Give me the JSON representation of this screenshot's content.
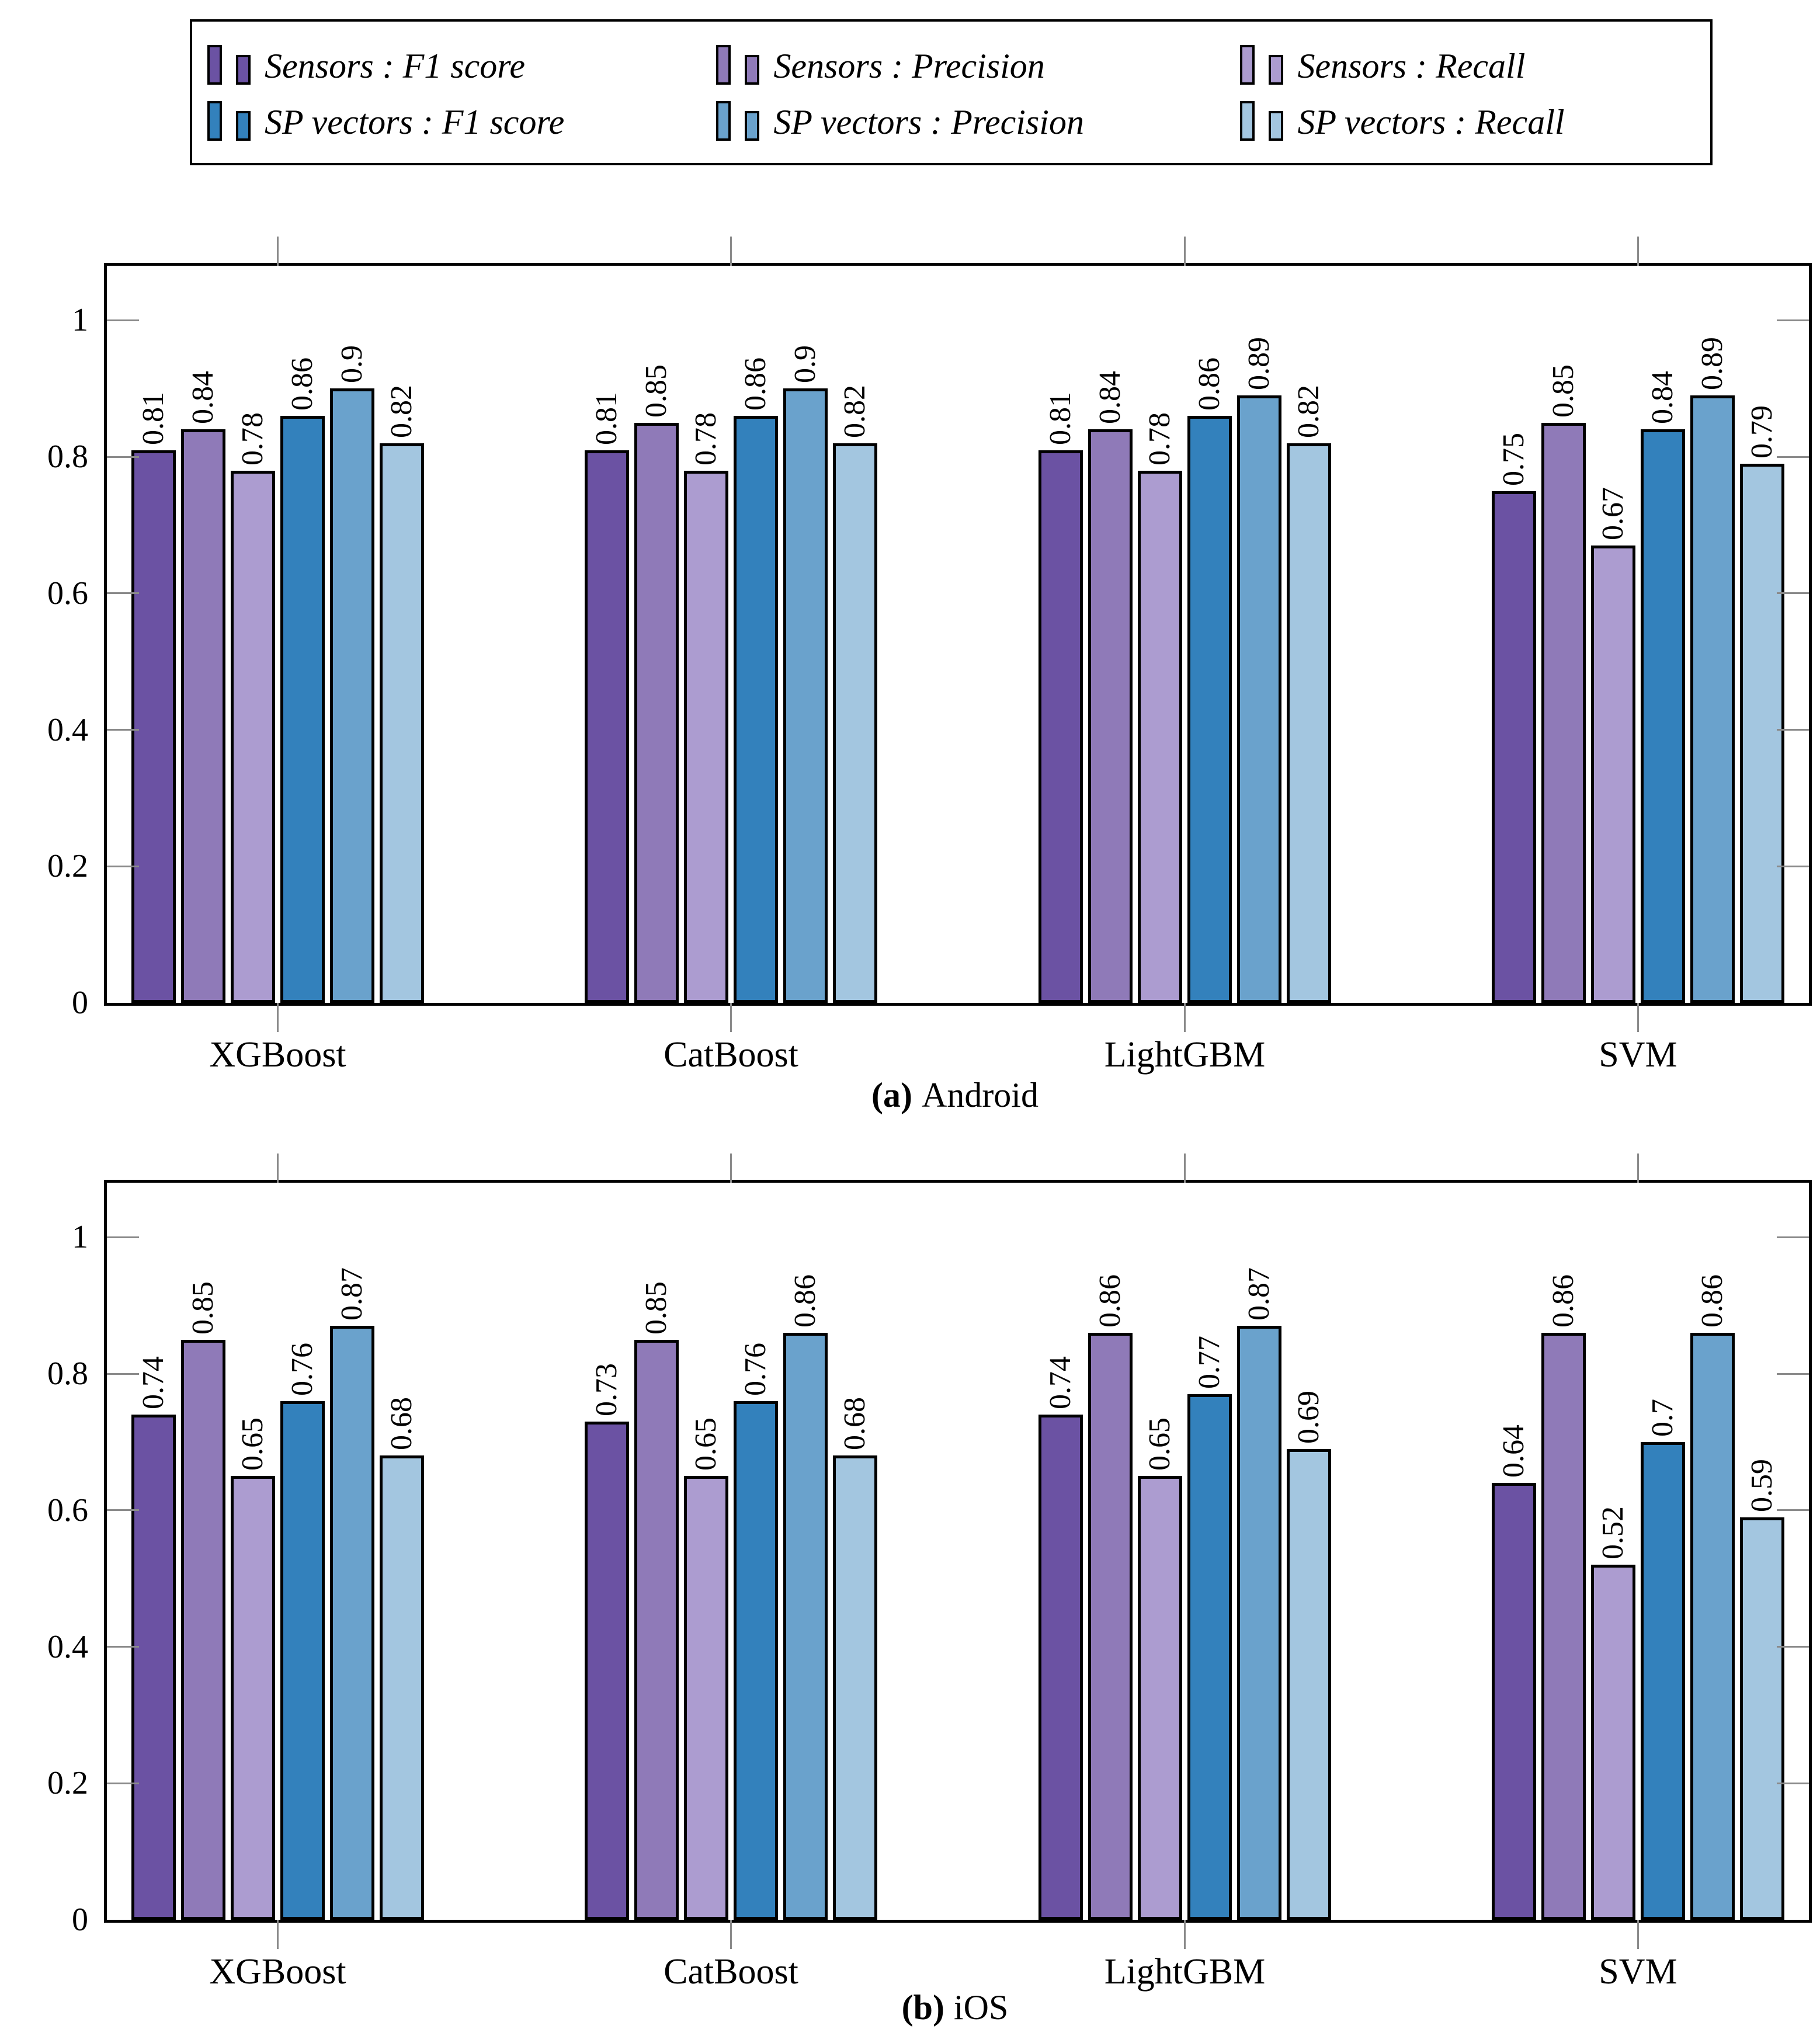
{
  "legend": {
    "entries": [
      {
        "label": "Sensors : F1 score",
        "color": "#6b52a3"
      },
      {
        "label": "Sensors : Precision",
        "color": "#8f7ab8"
      },
      {
        "label": "Sensors : Recall",
        "color": "#ac9cd0"
      },
      {
        "label": "SP vectors : F1 score",
        "color": "#3381bc"
      },
      {
        "label": "SP vectors : Precision",
        "color": "#6aa2cc"
      },
      {
        "label": "SP vectors : Recall",
        "color": "#a3c6e0"
      }
    ]
  },
  "chart_data": [
    {
      "type": "bar",
      "caption_tag": "(a)",
      "caption_label": "Android",
      "categories": [
        "XGBoost",
        "CatBoost",
        "LightGBM",
        "SVM"
      ],
      "series": [
        {
          "name": "Sensors : F1 score",
          "color": "#6b52a3",
          "values": [
            0.81,
            0.81,
            0.81,
            0.75
          ]
        },
        {
          "name": "Sensors : Precision",
          "color": "#8f7ab8",
          "values": [
            0.84,
            0.85,
            0.84,
            0.85
          ]
        },
        {
          "name": "Sensors : Recall",
          "color": "#ac9cd0",
          "values": [
            0.78,
            0.78,
            0.78,
            0.67
          ]
        },
        {
          "name": "SP vectors : F1 score",
          "color": "#3381bc",
          "values": [
            0.86,
            0.86,
            0.86,
            0.84
          ]
        },
        {
          "name": "SP vectors : Precision",
          "color": "#6aa2cc",
          "values": [
            0.9,
            0.9,
            0.89,
            0.89
          ]
        },
        {
          "name": "SP vectors : Recall",
          "color": "#a3c6e0",
          "values": [
            0.82,
            0.82,
            0.82,
            0.79
          ]
        }
      ],
      "ylabel": "",
      "xlabel": "",
      "yticks": [
        0,
        0.2,
        0.4,
        0.6,
        0.8,
        1
      ],
      "ylim": [
        0,
        1.08
      ],
      "grid": false,
      "legend_position": "top"
    },
    {
      "type": "bar",
      "caption_tag": "(b)",
      "caption_label": "iOS",
      "categories": [
        "XGBoost",
        "CatBoost",
        "LightGBM",
        "SVM"
      ],
      "series": [
        {
          "name": "Sensors : F1 score",
          "color": "#6b52a3",
          "values": [
            0.74,
            0.73,
            0.74,
            0.64
          ]
        },
        {
          "name": "Sensors : Precision",
          "color": "#8f7ab8",
          "values": [
            0.85,
            0.85,
            0.86,
            0.86
          ]
        },
        {
          "name": "Sensors : Recall",
          "color": "#ac9cd0",
          "values": [
            0.65,
            0.65,
            0.65,
            0.52
          ]
        },
        {
          "name": "SP vectors : F1 score",
          "color": "#3381bc",
          "values": [
            0.76,
            0.76,
            0.77,
            0.7
          ]
        },
        {
          "name": "SP vectors : Precision",
          "color": "#6aa2cc",
          "values": [
            0.87,
            0.86,
            0.87,
            0.86
          ]
        },
        {
          "name": "SP vectors : Recall",
          "color": "#a3c6e0",
          "values": [
            0.68,
            0.68,
            0.69,
            0.59
          ]
        }
      ],
      "ylabel": "",
      "xlabel": "",
      "yticks": [
        0,
        0.2,
        0.4,
        0.6,
        0.8,
        1
      ],
      "ylim": [
        0,
        1.08
      ],
      "grid": false,
      "legend_position": "top"
    }
  ]
}
